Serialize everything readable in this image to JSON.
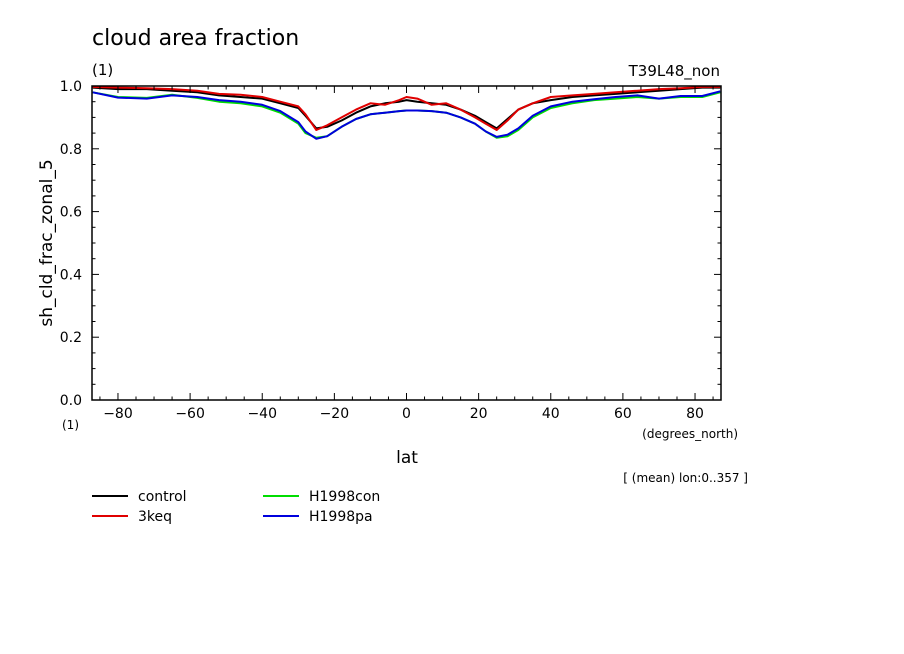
{
  "chart_data": {
    "type": "line",
    "title": "cloud area fraction",
    "title_unit": "(1)",
    "experiment": "T39L48_non",
    "xlabel": "lat",
    "xunit": "(degrees_north)",
    "ylabel": "sh_cld_frac_zonal_5",
    "yunit": "(1)",
    "note": "[ (mean) lon:0..357 ]",
    "xlim": [
      -87.2,
      87.2
    ],
    "ylim": [
      0.0,
      1.0
    ],
    "xticks": [
      -80,
      -60,
      -40,
      -20,
      0,
      20,
      40,
      60,
      80
    ],
    "xtick_labels": [
      "−80",
      "−60",
      "−40",
      "−20",
      "0",
      "20",
      "40",
      "60",
      "80"
    ],
    "yticks": [
      0.0,
      0.2,
      0.4,
      0.6,
      0.8,
      1.0
    ],
    "ytick_labels": [
      "0.0",
      "0.2",
      "0.4",
      "0.6",
      "0.8",
      "1.0"
    ],
    "grid": false,
    "legend_position": "bottom-left",
    "x": [
      -87,
      -80,
      -72,
      -65,
      -58,
      -52,
      -46,
      -40,
      -35,
      -30,
      -28,
      -25,
      -22,
      -18,
      -14,
      -10,
      -6,
      -2,
      0,
      3,
      7,
      11,
      15,
      19,
      22,
      25,
      28,
      31,
      35,
      40,
      46,
      52,
      58,
      64,
      70,
      76,
      82,
      87
    ],
    "series": [
      {
        "name": "control",
        "color": "#000000",
        "values": [
          0.995,
          0.99,
          0.99,
          0.985,
          0.98,
          0.97,
          0.965,
          0.96,
          0.945,
          0.93,
          0.905,
          0.865,
          0.87,
          0.89,
          0.915,
          0.935,
          0.945,
          0.95,
          0.955,
          0.95,
          0.945,
          0.94,
          0.925,
          0.905,
          0.885,
          0.865,
          0.895,
          0.925,
          0.945,
          0.955,
          0.965,
          0.97,
          0.975,
          0.98,
          0.985,
          0.99,
          0.995,
          0.995
        ]
      },
      {
        "name": "3keq",
        "color": "#e00000",
        "values": [
          0.997,
          0.995,
          0.993,
          0.99,
          0.985,
          0.975,
          0.972,
          0.965,
          0.95,
          0.935,
          0.91,
          0.86,
          0.875,
          0.9,
          0.925,
          0.945,
          0.94,
          0.955,
          0.965,
          0.96,
          0.94,
          0.945,
          0.925,
          0.9,
          0.88,
          0.86,
          0.89,
          0.925,
          0.945,
          0.965,
          0.97,
          0.975,
          0.98,
          0.985,
          0.99,
          0.993,
          0.997,
          0.997
        ]
      },
      {
        "name": "H1998con",
        "color": "#00dd00",
        "values": [
          0.98,
          0.965,
          0.962,
          0.972,
          0.962,
          0.95,
          0.945,
          0.935,
          0.915,
          0.88,
          0.85,
          0.835,
          0.84,
          0.87,
          0.895,
          0.91,
          0.915,
          0.92,
          0.922,
          0.922,
          0.92,
          0.915,
          0.9,
          0.88,
          0.855,
          0.835,
          0.84,
          0.86,
          0.9,
          0.93,
          0.945,
          0.955,
          0.96,
          0.965,
          0.96,
          0.965,
          0.965,
          0.98
        ]
      },
      {
        "name": "H1998pa",
        "color": "#0000dd",
        "values": [
          0.98,
          0.963,
          0.96,
          0.97,
          0.965,
          0.955,
          0.95,
          0.94,
          0.92,
          0.885,
          0.855,
          0.832,
          0.84,
          0.87,
          0.895,
          0.91,
          0.915,
          0.92,
          0.922,
          0.922,
          0.92,
          0.915,
          0.9,
          0.88,
          0.855,
          0.838,
          0.845,
          0.865,
          0.905,
          0.935,
          0.95,
          0.958,
          0.965,
          0.97,
          0.96,
          0.968,
          0.968,
          0.983
        ]
      }
    ]
  }
}
